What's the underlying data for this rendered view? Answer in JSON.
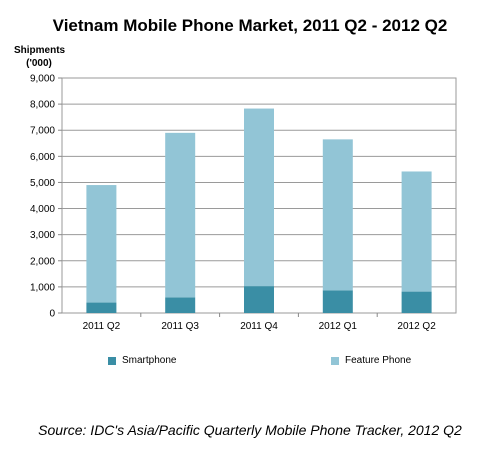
{
  "chart_data": {
    "type": "bar",
    "stacked": true,
    "title": "Vietnam Mobile Phone Market, 2011 Q2 - 2012 Q2",
    "ylabel": "Shipments\n('000)",
    "xlabel": "",
    "categories": [
      "2011 Q2",
      "2011 Q3",
      "2011 Q4",
      "2012 Q1",
      "2012 Q2"
    ],
    "series": [
      {
        "name": "Smartphone",
        "values": [
          400,
          600,
          1030,
          870,
          820
        ],
        "color": "#3a8ea5"
      },
      {
        "name": "Feature Phone",
        "values": [
          4500,
          6300,
          6800,
          5780,
          4600
        ],
        "color": "#92c5d6"
      }
    ],
    "ylim": [
      0,
      9000
    ],
    "yticks": [
      0,
      1000,
      2000,
      3000,
      4000,
      5000,
      6000,
      7000,
      8000,
      9000
    ],
    "ytick_labels": [
      "0",
      "1,000",
      "2,000",
      "3,000",
      "4,000",
      "5,000",
      "6,000",
      "7,000",
      "8,000",
      "9,000"
    ],
    "grid": true,
    "legend": "bottom"
  },
  "source": "Source: IDC's Asia/Pacific Quarterly Mobile Phone Tracker, 2012 Q2"
}
